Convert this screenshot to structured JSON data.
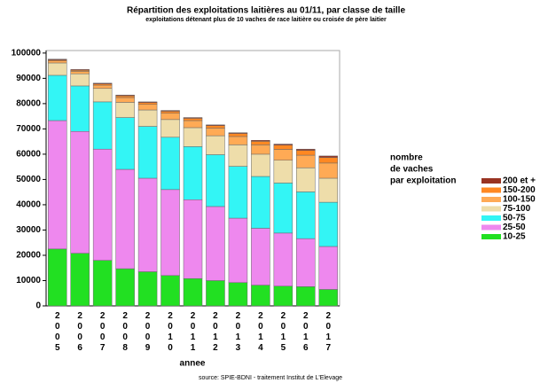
{
  "chart_data": {
    "type": "stacked_bar",
    "title": "Répartition des exploitations laitières au 01/11, par classe de taille",
    "subtitle": "exploitations détenant plus de 10 vaches de race laitière ou croisée de père laitier",
    "x_label": "annee",
    "source": "source: SPIE-BDNI - traitement Institut de L'Elevage",
    "legend_title": [
      "nombre",
      "de vaches",
      "par exploitation"
    ],
    "legend": "right",
    "categories": [
      "2005",
      "2006",
      "2007",
      "2008",
      "2009",
      "2010",
      "2011",
      "2012",
      "2013",
      "2014",
      "2015",
      "2016",
      "2017"
    ],
    "ylim": [
      0,
      101000
    ],
    "yticks": [
      0,
      10000,
      20000,
      30000,
      40000,
      50000,
      60000,
      70000,
      80000,
      90000,
      100000
    ],
    "series": [
      {
        "name": "10-25",
        "color": "#22e022",
        "values": [
          22500,
          20800,
          18000,
          14700,
          13500,
          12000,
          10800,
          10000,
          9200,
          8200,
          7800,
          7600,
          6500
        ]
      },
      {
        "name": "25-50",
        "color": "#ee88ee",
        "values": [
          50800,
          48200,
          44000,
          39300,
          37000,
          34000,
          31200,
          29300,
          25500,
          22500,
          21000,
          19000,
          17000
        ]
      },
      {
        "name": "50-75",
        "color": "#33f5f5",
        "values": [
          17900,
          18000,
          18700,
          20500,
          20500,
          20700,
          21000,
          20500,
          20500,
          20500,
          19800,
          18500,
          17500
        ]
      },
      {
        "name": "75-100",
        "color": "#eeddaa",
        "values": [
          4900,
          4800,
          5300,
          6000,
          6500,
          7000,
          7500,
          7500,
          8500,
          8800,
          9000,
          9500,
          9500
        ]
      },
      {
        "name": "100-150",
        "color": "#ffaa55",
        "values": [
          800,
          1000,
          1300,
          1900,
          2200,
          2500,
          2800,
          3000,
          3300,
          3700,
          4300,
          5000,
          6000
        ]
      },
      {
        "name": "150-200",
        "color": "#ff8822",
        "values": [
          400,
          400,
          500,
          700,
          700,
          800,
          900,
          1000,
          1200,
          1400,
          1700,
          1900,
          2200
        ]
      },
      {
        "name": "200 et +",
        "color": "#993322",
        "values": [
          300,
          300,
          300,
          300,
          300,
          300,
          300,
          300,
          300,
          400,
          400,
          500,
          600
        ]
      }
    ]
  }
}
